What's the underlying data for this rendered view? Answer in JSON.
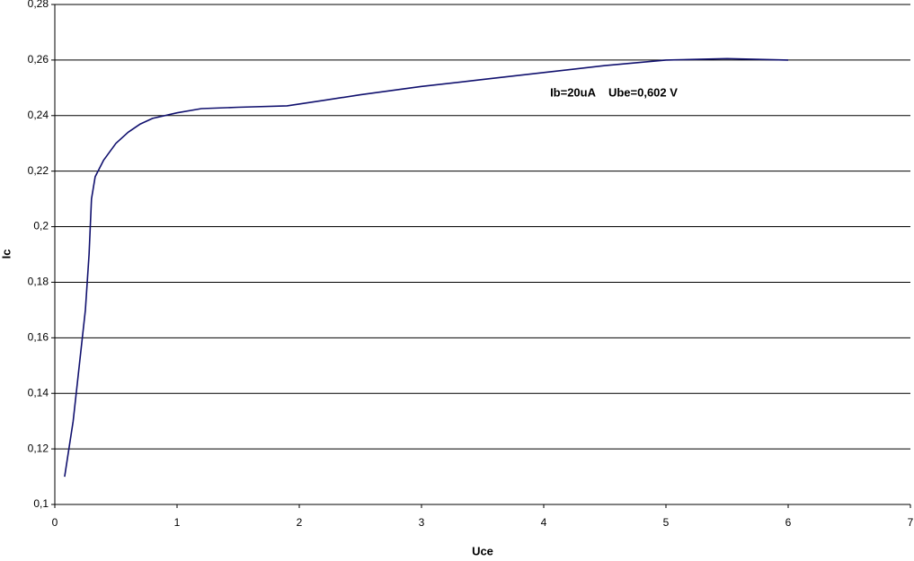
{
  "chart_data": {
    "type": "line",
    "x_label": "Uce",
    "y_label": "Ic",
    "annotation": "Ib=20uA    Ube=0,602 V",
    "series": [
      {
        "name": "Ic",
        "color": "#10106e",
        "x": [
          0.08,
          0.15,
          0.2,
          0.25,
          0.28,
          0.3,
          0.33,
          0.4,
          0.5,
          0.6,
          0.7,
          0.8,
          1,
          1.2,
          1.5,
          1.9,
          2.2,
          2.5,
          3,
          3.5,
          4,
          4.5,
          5,
          5.5,
          6
        ],
        "values": [
          0.11,
          0.13,
          0.15,
          0.17,
          0.19,
          0.21,
          0.218,
          0.224,
          0.23,
          0.234,
          0.237,
          0.239,
          0.241,
          0.2425,
          0.243,
          0.2435,
          0.2455,
          0.2475,
          0.2505,
          0.253,
          0.2555,
          0.258,
          0.26,
          0.2605,
          0.26
        ]
      }
    ],
    "xlim": [
      0,
      7
    ],
    "xticks": [
      0,
      1,
      2,
      3,
      4,
      5,
      6,
      7
    ],
    "ylim": [
      0.1,
      0.28
    ],
    "yticks": [
      {
        "value": 0.1,
        "label": "0,1"
      },
      {
        "value": 0.12,
        "label": "0,12"
      },
      {
        "value": 0.14,
        "label": "0,14"
      },
      {
        "value": 0.16,
        "label": "0,16"
      },
      {
        "value": 0.18,
        "label": "0,18"
      },
      {
        "value": 0.2,
        "label": "0,2"
      },
      {
        "value": 0.22,
        "label": "0,22"
      },
      {
        "value": 0.24,
        "label": "0,24"
      },
      {
        "value": 0.26,
        "label": "0,26"
      },
      {
        "value": 0.28,
        "label": "0,28"
      }
    ],
    "grid": true
  }
}
